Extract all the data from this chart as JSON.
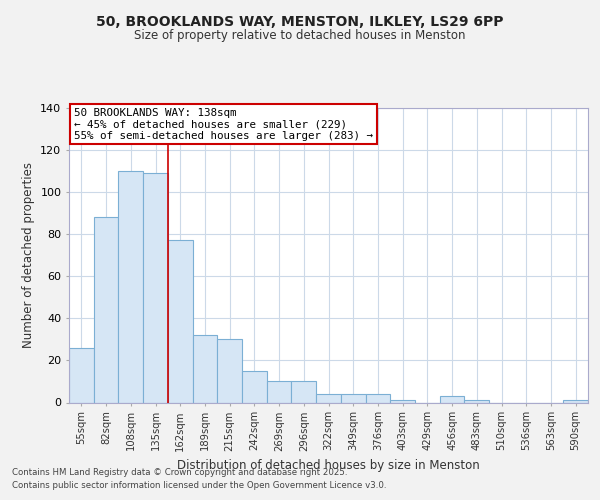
{
  "title1": "50, BROOKLANDS WAY, MENSTON, ILKLEY, LS29 6PP",
  "title2": "Size of property relative to detached houses in Menston",
  "xlabel": "Distribution of detached houses by size in Menston",
  "ylabel": "Number of detached properties",
  "footnote1": "Contains HM Land Registry data © Crown copyright and database right 2025.",
  "footnote2": "Contains public sector information licensed under the Open Government Licence v3.0.",
  "annotation_line1": "50 BROOKLANDS WAY: 138sqm",
  "annotation_line2": "← 45% of detached houses are smaller (229)",
  "annotation_line3": "55% of semi-detached houses are larger (283) →",
  "bar_edge_color": "#7bafd4",
  "bar_face_color": "#d6e6f5",
  "vline_color": "#cc0000",
  "background_color": "#f2f2f2",
  "plot_bg_color": "#ffffff",
  "categories": [
    "55sqm",
    "82sqm",
    "108sqm",
    "135sqm",
    "162sqm",
    "189sqm",
    "215sqm",
    "242sqm",
    "269sqm",
    "296sqm",
    "322sqm",
    "349sqm",
    "376sqm",
    "403sqm",
    "429sqm",
    "456sqm",
    "483sqm",
    "510sqm",
    "536sqm",
    "563sqm",
    "590sqm"
  ],
  "values": [
    26,
    88,
    110,
    109,
    77,
    32,
    30,
    15,
    10,
    10,
    4,
    4,
    4,
    1,
    0,
    3,
    1,
    0,
    0,
    0,
    1
  ],
  "ylim": [
    0,
    140
  ],
  "yticks": [
    0,
    20,
    40,
    60,
    80,
    100,
    120,
    140
  ],
  "vline_x": 3.5,
  "grid_color": "#ccd9e8",
  "ann_box_color": "#cc0000"
}
